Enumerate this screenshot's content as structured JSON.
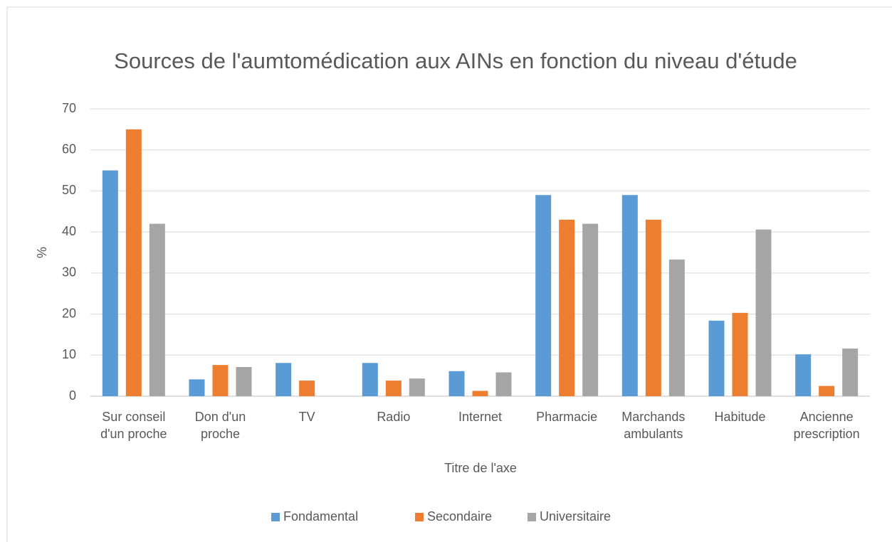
{
  "chart_data": {
    "type": "bar",
    "title": "Sources de l'aumtomédication aux AINs en fonction du niveau d'étude",
    "x_label": "Titre de l'axe",
    "y_label": "%",
    "categories": [
      "Sur conseil d'un proche",
      "Don d'un proche",
      "TV",
      "Radio",
      "Internet",
      "Pharmacie",
      "Marchands ambulants",
      "Habitude",
      "Ancienne prescription"
    ],
    "series": [
      {
        "name": "Fondamental",
        "color": "#5b9bd5",
        "values": [
          55,
          4.1,
          8.1,
          8.1,
          6.1,
          49,
          49,
          18.4,
          10.2
        ]
      },
      {
        "name": "Secondaire",
        "color": "#ed7d31",
        "values": [
          65,
          7.6,
          3.8,
          3.8,
          1.3,
          43,
          43,
          20.3,
          2.5
        ]
      },
      {
        "name": "Universitaire",
        "color": "#a5a5a5",
        "values": [
          42,
          7.1,
          0,
          4.3,
          5.8,
          42,
          33.3,
          40.6,
          11.6
        ]
      }
    ],
    "ylim": [
      0,
      70
    ],
    "yticks": [
      0,
      10,
      20,
      30,
      40,
      50,
      60,
      70
    ],
    "grid": true,
    "legend": "bottom"
  }
}
